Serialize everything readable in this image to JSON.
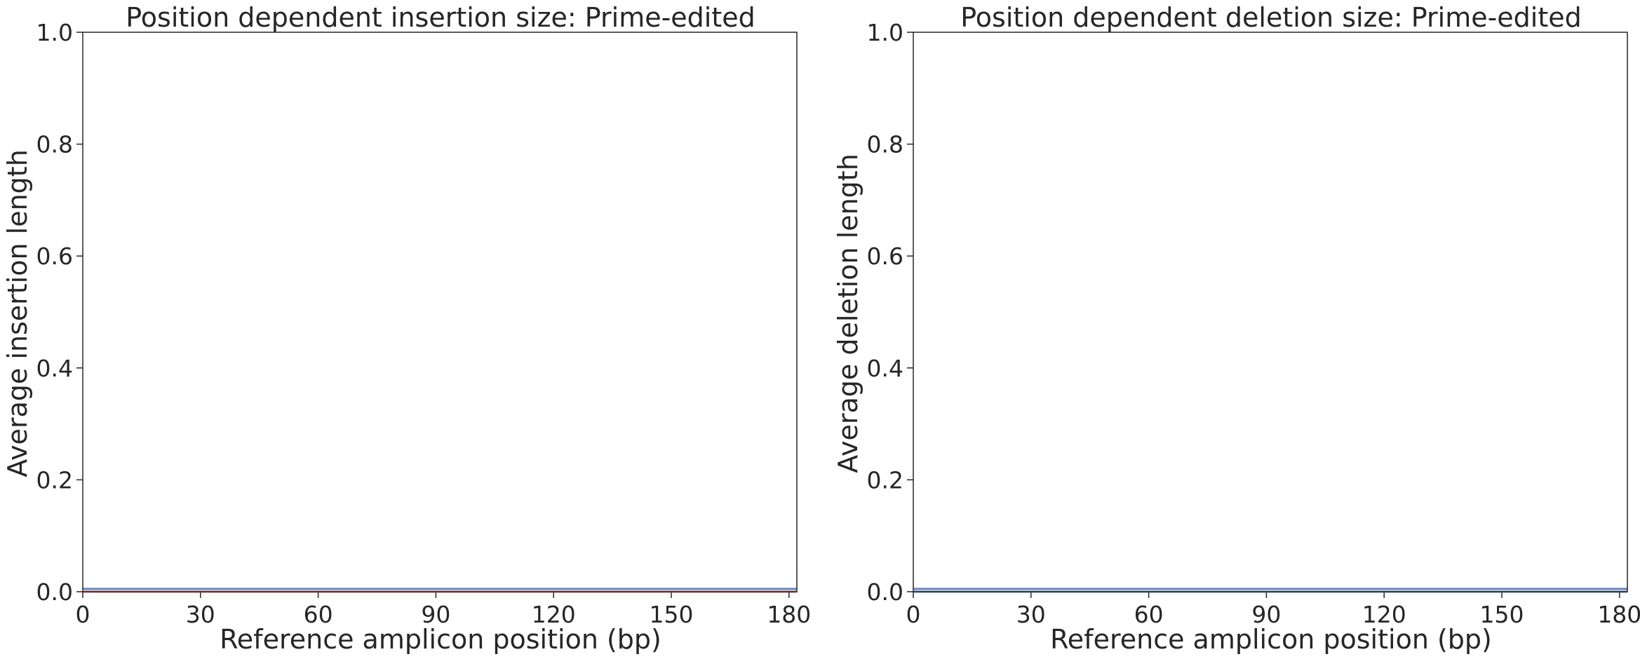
{
  "chart_data": [
    {
      "type": "line",
      "title": "Position dependent insertion size: Prime-edited",
      "xlabel": "Reference amplicon position (bp)",
      "ylabel": "Average insertion length",
      "xlim": [
        0,
        182
      ],
      "ylim": [
        0,
        1.0
      ],
      "xticks": [
        0,
        30,
        60,
        90,
        120,
        150,
        180
      ],
      "yticks": [
        0.0,
        0.2,
        0.4,
        0.6,
        0.8,
        1.0
      ],
      "grid": false,
      "series": [
        {
          "color": "#c44e52",
          "x": [
            0,
            182
          ],
          "y": [
            0.0,
            0.0
          ]
        },
        {
          "color": "#4c72b0",
          "x": [
            0,
            182
          ],
          "y": [
            0.005,
            0.005
          ]
        }
      ]
    },
    {
      "type": "line",
      "title": "Position dependent deletion size: Prime-edited",
      "xlabel": "Reference amplicon position (bp)",
      "ylabel": "Average deletion length",
      "xlim": [
        0,
        182
      ],
      "ylim": [
        0,
        1.0
      ],
      "xticks": [
        0,
        30,
        60,
        90,
        120,
        150,
        180
      ],
      "yticks": [
        0.0,
        0.2,
        0.4,
        0.6,
        0.8,
        1.0
      ],
      "grid": false,
      "series": [
        {
          "color": "#4c72b0",
          "x": [
            0,
            182
          ],
          "y": [
            0.0,
            0.0
          ]
        },
        {
          "color": "#4c72b0",
          "x": [
            0,
            182
          ],
          "y": [
            0.005,
            0.005
          ]
        }
      ]
    }
  ]
}
